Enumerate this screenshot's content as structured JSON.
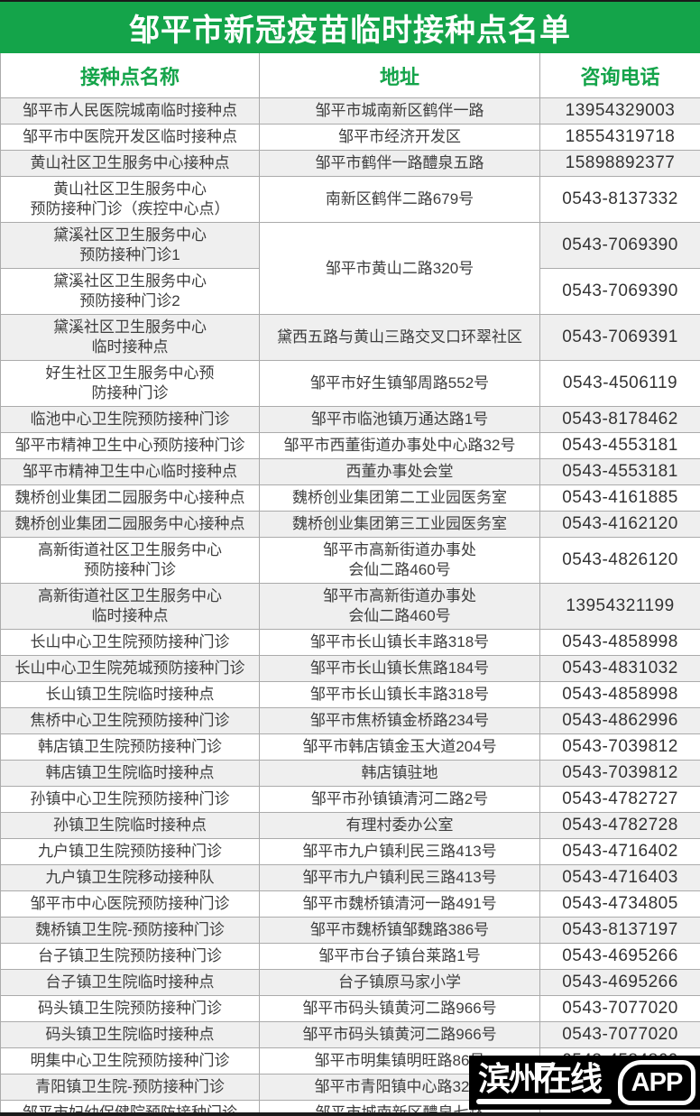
{
  "title": "邹平市新冠疫苗临时接种点名单",
  "colors": {
    "accent_green": "#14A44A",
    "title_text": "#FFFFFF",
    "row_alt_background": "#EFEFEF",
    "cell_border": "#ABABAB",
    "body_text": "#3D3D3D",
    "watermark_background": "#000000",
    "watermark_text": "#FFFFFF"
  },
  "table": {
    "headers": [
      "接种点名称",
      "地址",
      "咨询电话"
    ],
    "rows": [
      {
        "name": [
          "邹平市人民医院城南临时接种点"
        ],
        "address": [
          "邹平市城南新区鹤伴一路"
        ],
        "phone": "13954329003",
        "shaded": true
      },
      {
        "name": [
          "邹平市中医院开发区临时接种点"
        ],
        "address": [
          "邹平市经济开发区"
        ],
        "phone": "18554319718",
        "shaded": false
      },
      {
        "name": [
          "黄山社区卫生服务中心接种点"
        ],
        "address": [
          "邹平市鹤伴一路醴泉五路"
        ],
        "phone": "15898892377",
        "shaded": true
      },
      {
        "name": [
          "黄山社区卫生服务中心",
          "预防接种门诊（疾控中心点）"
        ],
        "address": [
          "南新区鹤伴二路679号"
        ],
        "phone": "0543-8137332",
        "shaded": false
      },
      {
        "name": [
          "黛溪社区卫生服务中心",
          "预防接种门诊1"
        ],
        "address": [
          "邹平市黄山二路320号"
        ],
        "address_rowspan": 2,
        "phone": "0543-7069390",
        "shaded": true
      },
      {
        "name": [
          "黛溪社区卫生服务中心",
          "预防接种门诊2"
        ],
        "address_merged_up": true,
        "phone": "0543-7069390",
        "shaded": false
      },
      {
        "name": [
          "黛溪社区卫生服务中心",
          "临时接种点"
        ],
        "address": [
          "黛西五路与黄山三路交叉口环翠社区"
        ],
        "phone": "0543-7069391",
        "shaded": true
      },
      {
        "name": [
          "好生社区卫生服务中心预",
          "防接种门诊"
        ],
        "address": [
          "邹平市好生镇邹周路552号"
        ],
        "phone": "0543-4506119",
        "shaded": false
      },
      {
        "name": [
          "临池中心卫生院预防接种门诊"
        ],
        "address": [
          "邹平市临池镇万通达路1号"
        ],
        "phone": "0543-8178462",
        "shaded": true
      },
      {
        "name": [
          "邹平市精神卫生中心预防接种门诊"
        ],
        "address": [
          "邹平市西董街道办事处中心路32号"
        ],
        "phone": "0543-4553181",
        "shaded": false
      },
      {
        "name": [
          "邹平市精神卫生中心临时接种点"
        ],
        "address": [
          "西董办事处会堂"
        ],
        "phone": "0543-4553181",
        "shaded": true
      },
      {
        "name": [
          "魏桥创业集团二园服务中心接种点"
        ],
        "address": [
          "魏桥创业集团第二工业园医务室"
        ],
        "phone": "0543-4161885",
        "shaded": false
      },
      {
        "name": [
          "魏桥创业集团二园服务中心接种点"
        ],
        "address": [
          "魏桥创业集团第三工业园医务室"
        ],
        "phone": "0543-4162120",
        "shaded": true
      },
      {
        "name": [
          "高新街道社区卫生服务中心",
          "预防接种门诊"
        ],
        "address": [
          "邹平市高新街道办事处",
          "会仙二路460号"
        ],
        "phone": "0543-4826120",
        "shaded": false
      },
      {
        "name": [
          "高新街道社区卫生服务中心",
          "临时接种点"
        ],
        "address": [
          "邹平市高新街道办事处",
          "会仙二路460号"
        ],
        "phone": "13954321199",
        "shaded": true
      },
      {
        "name": [
          "长山中心卫生院预防接种门诊"
        ],
        "address": [
          "邹平市长山镇长丰路318号"
        ],
        "phone": "0543-4858998",
        "shaded": false
      },
      {
        "name": [
          "长山中心卫生院苑城预防接种门诊"
        ],
        "address": [
          "邹平市长山镇长焦路184号"
        ],
        "phone": "0543-4831032",
        "shaded": true
      },
      {
        "name": [
          "长山镇卫生院临时接种点"
        ],
        "address": [
          "邹平市长山镇长丰路318号"
        ],
        "phone": "0543-4858998",
        "shaded": false
      },
      {
        "name": [
          "焦桥中心卫生院预防接种门诊"
        ],
        "address": [
          "邹平市焦桥镇金桥路234号"
        ],
        "phone": "0543-4862996",
        "shaded": true
      },
      {
        "name": [
          "韩店镇卫生院预防接种门诊"
        ],
        "address": [
          "邹平市韩店镇金玉大道204号"
        ],
        "phone": "0543-7039812",
        "shaded": false
      },
      {
        "name": [
          "韩店镇卫生院临时接种点"
        ],
        "address": [
          "韩店镇驻地"
        ],
        "phone": "0543-7039812",
        "shaded": true
      },
      {
        "name": [
          "孙镇中心卫生院预防接种门诊"
        ],
        "address": [
          "邹平市孙镇镇清河二路2号"
        ],
        "phone": "0543-4782727",
        "shaded": false
      },
      {
        "name": [
          "孙镇卫生院临时接种点"
        ],
        "address": [
          "有理村委办公室"
        ],
        "phone": "0543-4782728",
        "shaded": true
      },
      {
        "name": [
          "九户镇卫生院预防接种门诊"
        ],
        "address": [
          "邹平市九户镇利民三路413号"
        ],
        "phone": "0543-4716402",
        "shaded": false
      },
      {
        "name": [
          "九户镇卫生院移动接种队"
        ],
        "address": [
          "邹平市九户镇利民三路413号"
        ],
        "phone": "0543-4716403",
        "shaded": true
      },
      {
        "name": [
          "邹平市中心医院预防接种门诊"
        ],
        "address": [
          "邹平市魏桥镇清河一路491号"
        ],
        "phone": "0543-4734805",
        "shaded": false
      },
      {
        "name": [
          "魏桥镇卫生院-预防接种门诊"
        ],
        "address": [
          "邹平市魏桥镇邹魏路386号"
        ],
        "phone": "0543-8137197",
        "shaded": true
      },
      {
        "name": [
          "台子镇卫生院预防接种门诊"
        ],
        "address": [
          "邹平市台子镇台莱路1号"
        ],
        "phone": "0543-4695266",
        "shaded": false
      },
      {
        "name": [
          "台子镇卫生院临时接种点"
        ],
        "address": [
          "台子镇原马家小学"
        ],
        "phone": "0543-4695266",
        "shaded": true
      },
      {
        "name": [
          "码头镇卫生院预防接种门诊"
        ],
        "address": [
          "邹平市码头镇黄河二路966号"
        ],
        "phone": "0543-7077020",
        "shaded": false
      },
      {
        "name": [
          "码头镇卫生院临时接种点"
        ],
        "address": [
          "邹平市码头镇黄河二路966号"
        ],
        "phone": "0543-7077020",
        "shaded": true
      },
      {
        "name": [
          "明集中心卫生院预防接种门诊"
        ],
        "address": [
          "邹平市明集镇明旺路86号"
        ],
        "phone": "0543-4584860",
        "shaded": false
      },
      {
        "name": [
          "青阳镇卫生院-预防接种门诊"
        ],
        "address": [
          "邹平市青阳镇中心路32号"
        ],
        "phone": "",
        "shaded": true
      },
      {
        "name": [
          "邹平市妇幼保健院预防接种门诊"
        ],
        "address": [
          "邹平市城南新区醴泉七路"
        ],
        "phone": "",
        "shaded": false
      }
    ]
  },
  "watermark": {
    "brand": "滨州在线",
    "badge": "APP"
  }
}
